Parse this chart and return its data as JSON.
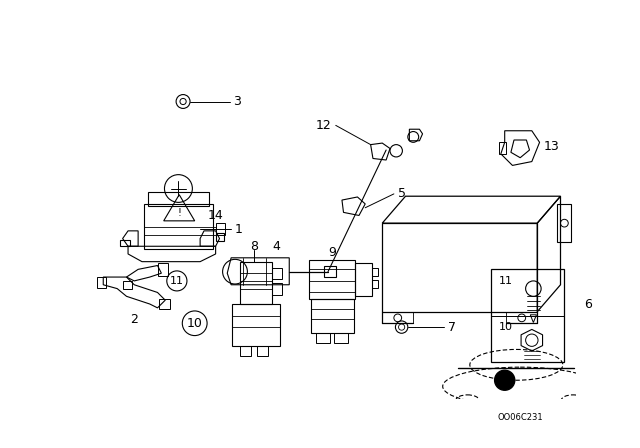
{
  "bg_color": "#ffffff",
  "fig_width": 6.4,
  "fig_height": 4.48,
  "dpi": 100,
  "watermark": "OO06C231",
  "label_fs": 9,
  "small_fs": 7
}
